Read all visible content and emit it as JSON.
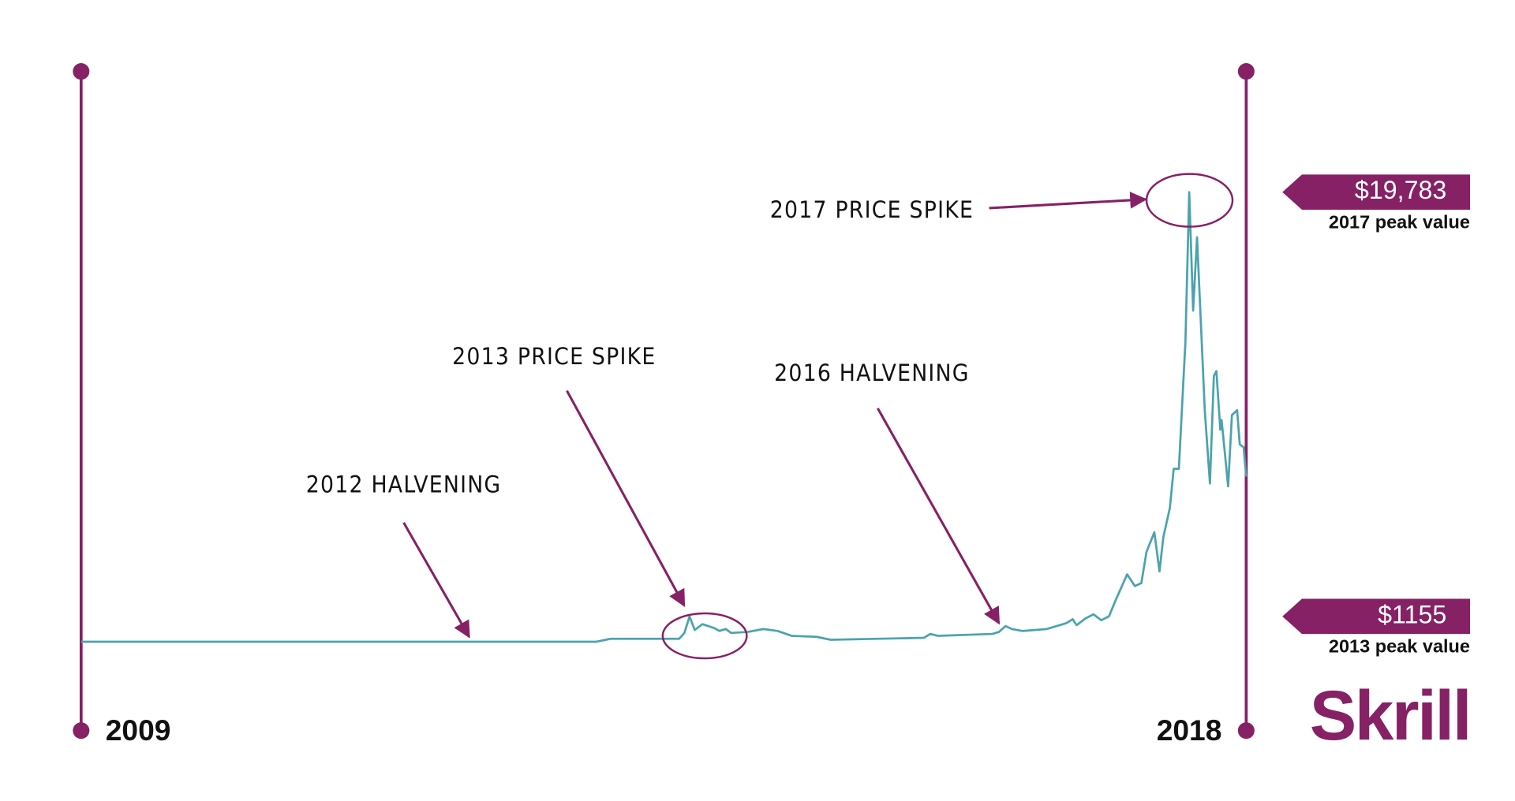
{
  "chart_data": {
    "type": "line",
    "x": [
      2009.0,
      2012.98,
      2013.09,
      2013.62,
      2013.66,
      2013.7,
      2013.74,
      2013.8,
      2013.89,
      2013.93,
      2013.98,
      2014.02,
      2014.15,
      2014.27,
      2014.38,
      2014.49,
      2014.68,
      2014.79,
      2015.51,
      2015.56,
      2015.62,
      2016.04,
      2016.09,
      2016.14,
      2016.19,
      2016.27,
      2016.46,
      2016.61,
      2016.66,
      2016.69,
      2016.76,
      2016.82,
      2016.88,
      2016.94,
      2016.99,
      2017.08,
      2017.14,
      2017.19,
      2017.23,
      2017.29,
      2017.33,
      2017.36,
      2017.41,
      2017.44,
      2017.48,
      2017.53,
      2017.56,
      2017.59,
      2017.62,
      2017.68,
      2017.72,
      2017.75,
      2017.77,
      2017.8,
      2017.81,
      2017.86,
      2017.89,
      2017.93,
      2017.95,
      2017.98,
      2018.0
    ],
    "values": [
      43,
      43,
      172,
      172,
      429,
      1155,
      558,
      815,
      644,
      515,
      600,
      429,
      472,
      600,
      515,
      300,
      257,
      129,
      215,
      386,
      300,
      386,
      472,
      729,
      600,
      515,
      600,
      858,
      1030,
      772,
      1073,
      1244,
      987,
      1158,
      1845,
      3003,
      2488,
      2617,
      3990,
      4848,
      3132,
      4633,
      5920,
      7636,
      7636,
      13213,
      19783,
      14586,
      17804,
      10210,
      6993,
      11712,
      11926,
      9352,
      9781,
      6864,
      9995,
      10210,
      8709,
      8580,
      7293
    ],
    "color": "#4ba3ad",
    "xlim": [
      2009,
      2018
    ],
    "xticks": [
      2009,
      2018
    ],
    "ylim": [
      0,
      25000
    ],
    "axis_color": "#862165",
    "annotations": [
      {
        "text": "2012 HALVENING"
      },
      {
        "text": "2013 PRICE SPIKE"
      },
      {
        "text": "2016 HALVENING"
      },
      {
        "text": "2017 PRICE SPIKE"
      }
    ],
    "callouts": [
      {
        "value": 19783,
        "label": "$19,783",
        "caption": "2017 peak value"
      },
      {
        "value": 1155,
        "label": "$1155",
        "caption": "2013 peak value"
      }
    ]
  },
  "logo": "Skrill"
}
